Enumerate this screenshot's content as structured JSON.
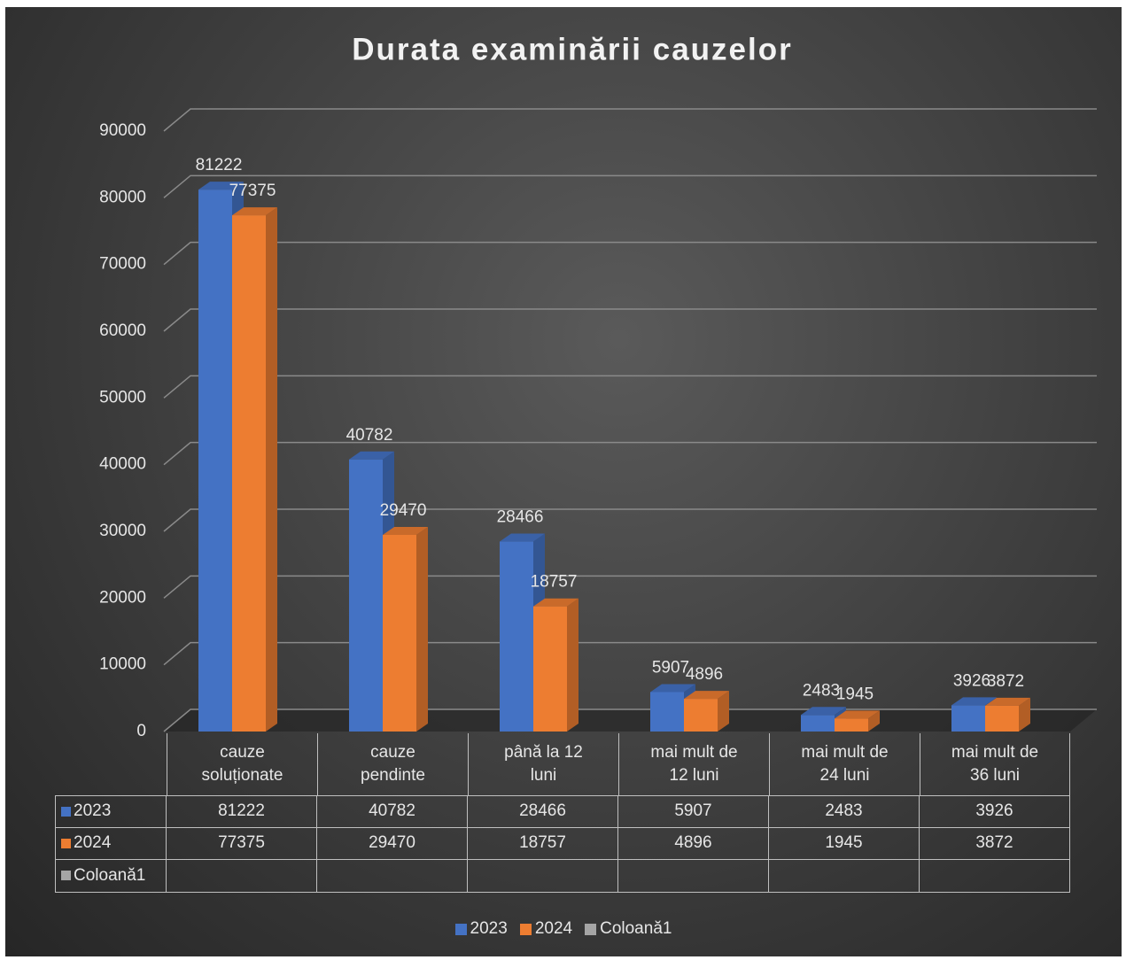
{
  "chart_data": {
    "type": "bar",
    "title": "Durata examinării cauzelor",
    "categories": [
      "cauze soluționate",
      "cauze pendinte",
      "până la 12 luni",
      "mai mult de 12 luni",
      "mai mult de 24 luni",
      "mai mult de 36 luni"
    ],
    "series": [
      {
        "name": "2023",
        "color": "#4472c4",
        "values": [
          81222,
          40782,
          28466,
          5907,
          2483,
          3926
        ]
      },
      {
        "name": "2024",
        "color": "#ed7d31",
        "values": [
          77375,
          29470,
          18757,
          4896,
          1945,
          3872
        ]
      },
      {
        "name": "Coloană1",
        "color": "#a5a5a5",
        "values": [
          null,
          null,
          null,
          null,
          null,
          null
        ]
      }
    ],
    "ylim": [
      0,
      90000
    ],
    "yticks": [
      0,
      10000,
      20000,
      30000,
      40000,
      50000,
      60000,
      70000,
      80000,
      90000
    ],
    "grid": true,
    "legend": "bottom"
  }
}
